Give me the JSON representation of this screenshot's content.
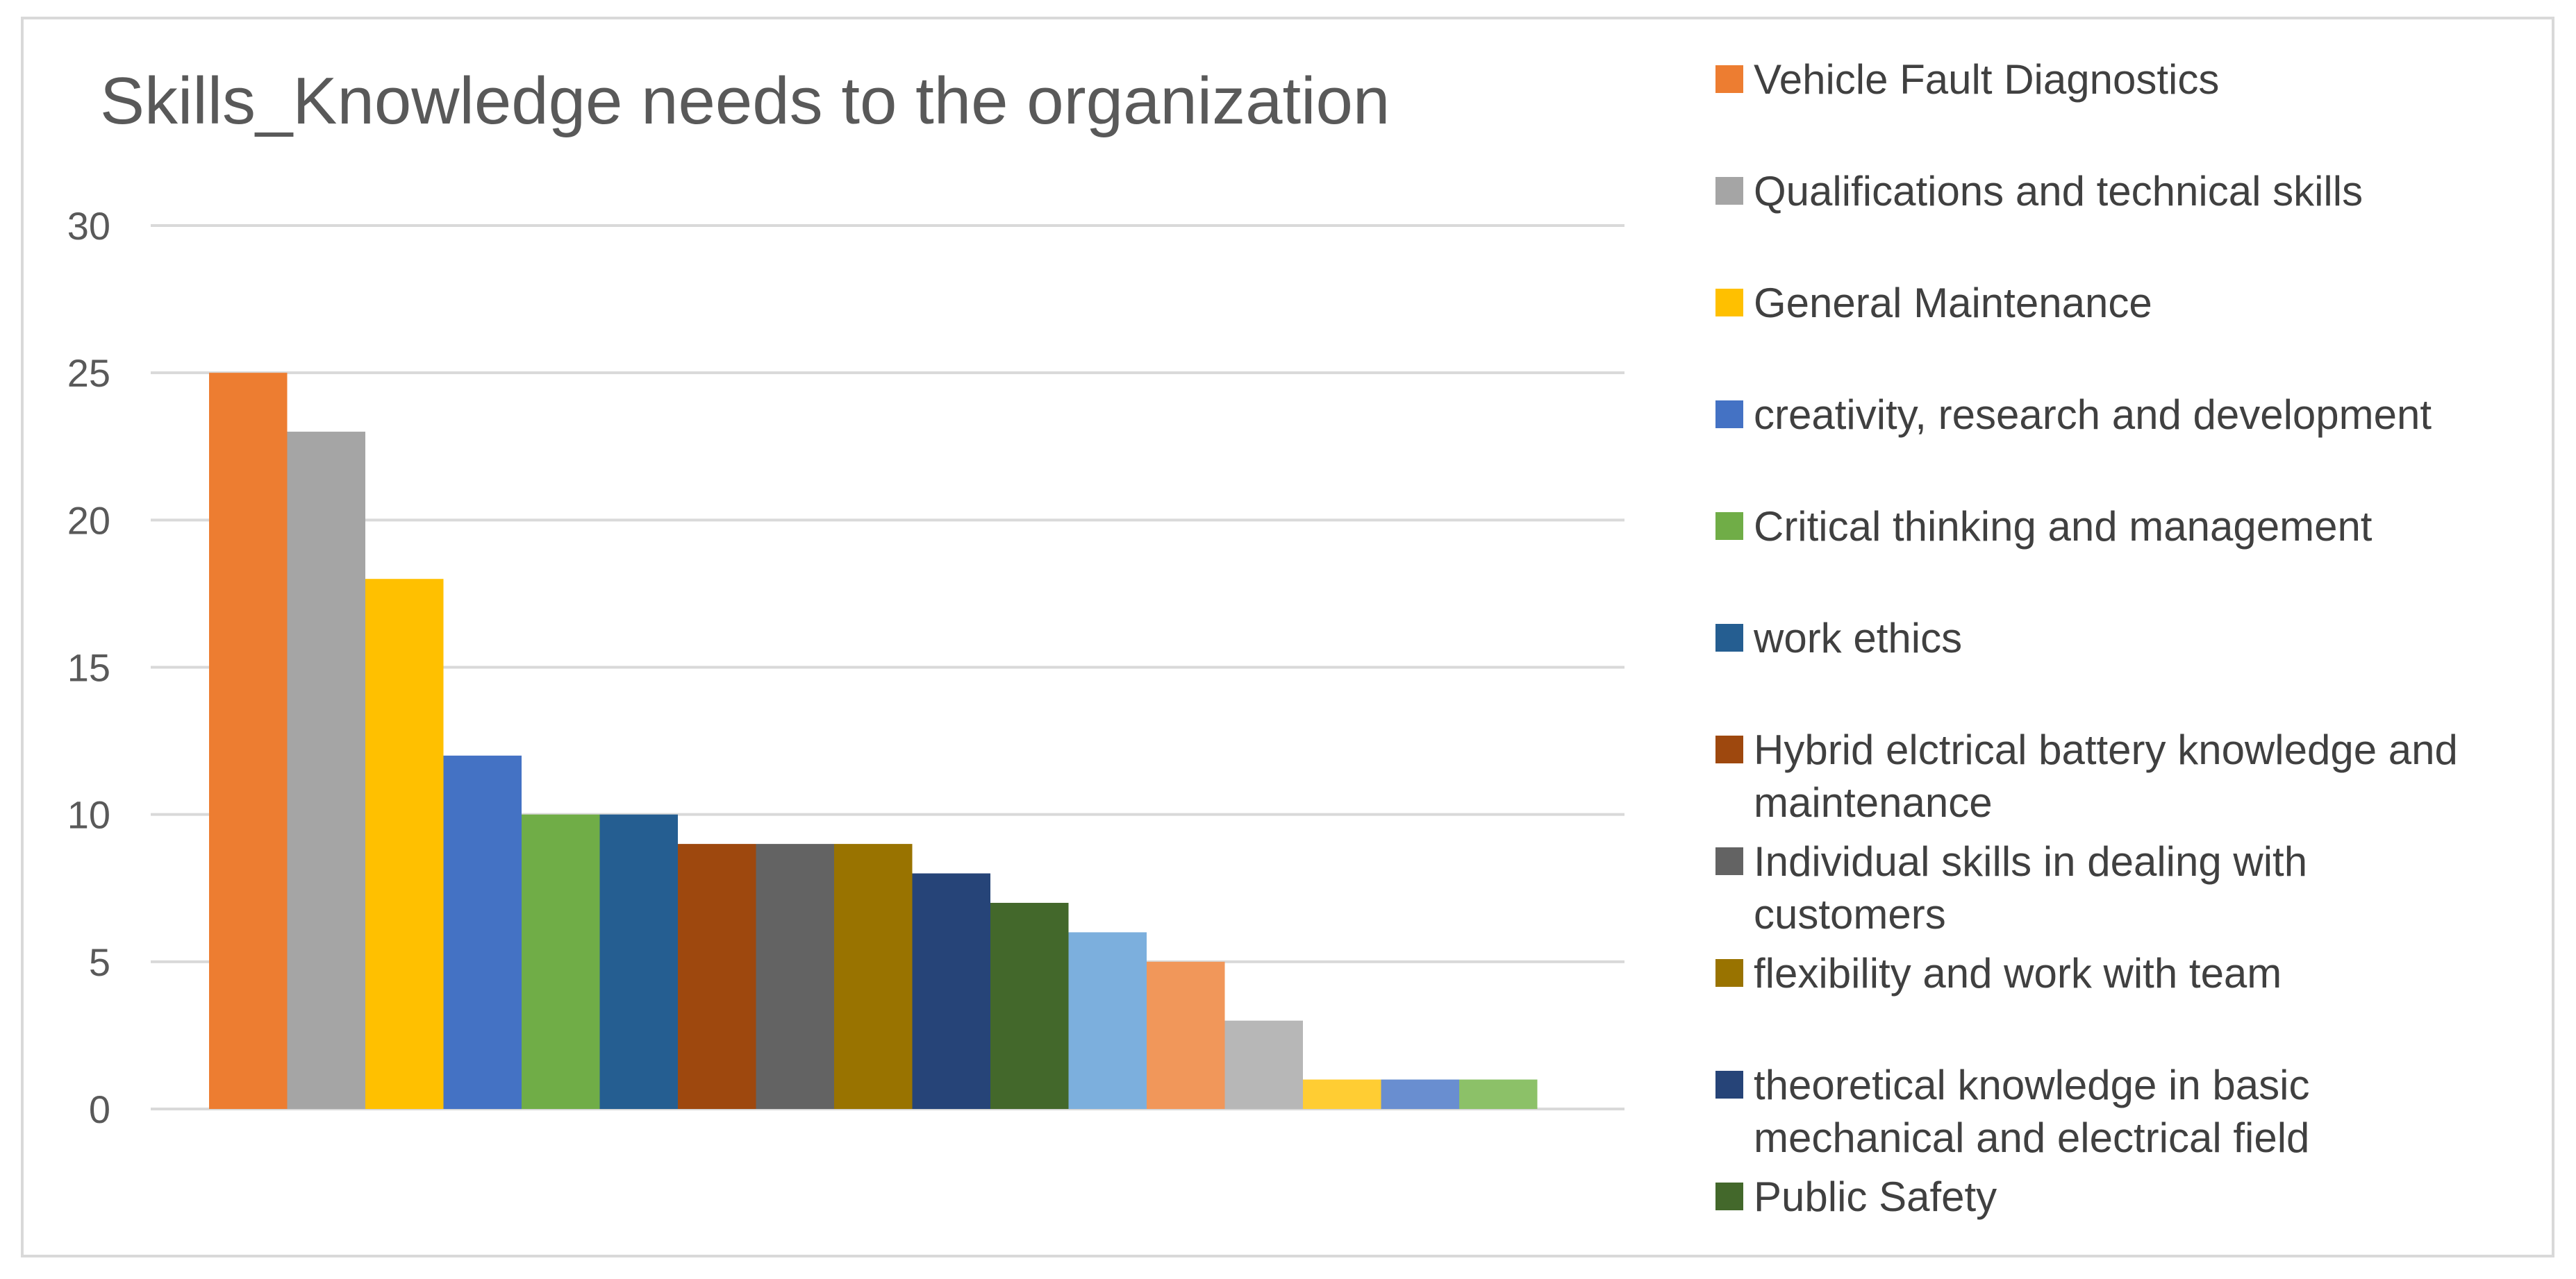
{
  "chart_data": {
    "type": "bar",
    "title": "Skills_Knowledge needs to the organization",
    "xlabel": "",
    "ylabel": "",
    "ylim": [
      0,
      30
    ],
    "yticks": [
      0,
      5,
      10,
      15,
      20,
      25,
      30
    ],
    "grid": true,
    "legend_position": "right",
    "series": [
      {
        "name": "Vehicle Fault Diagnostics",
        "value": 25,
        "color": "#ED7D31"
      },
      {
        "name": "Qualifications and technical skills",
        "value": 23,
        "color": "#A5A5A5"
      },
      {
        "name": "General Maintenance",
        "value": 18,
        "color": "#FFC000"
      },
      {
        "name": "creativity, research and development",
        "value": 12,
        "color": "#4472C4"
      },
      {
        "name": "Critical thinking and management",
        "value": 10,
        "color": "#70AD47"
      },
      {
        "name": "work ethics",
        "value": 10,
        "color": "#255E91"
      },
      {
        "name": "Hybrid elctrical battery knowledge and maintenance",
        "value": 9,
        "color": "#9E480E"
      },
      {
        "name": "Individual skills in dealing with customers",
        "value": 9,
        "color": "#636363"
      },
      {
        "name": "flexibility and work with team",
        "value": 9,
        "color": "#997300"
      },
      {
        "name": "theoretical knowledge in basic mechanical and electrical field",
        "value": 8,
        "color": "#264478"
      },
      {
        "name": "Public Safety",
        "value": 7,
        "color": "#43682B"
      },
      {
        "name": "",
        "value": 6,
        "color": "#7CAFDD"
      },
      {
        "name": "",
        "value": 5,
        "color": "#F1975A"
      },
      {
        "name": "",
        "value": 3,
        "color": "#B7B7B7"
      },
      {
        "name": "",
        "value": 1,
        "color": "#FFCD33"
      },
      {
        "name": "",
        "value": 1,
        "color": "#698ED0"
      },
      {
        "name": "",
        "value": 1,
        "color": "#8CC168"
      }
    ]
  }
}
